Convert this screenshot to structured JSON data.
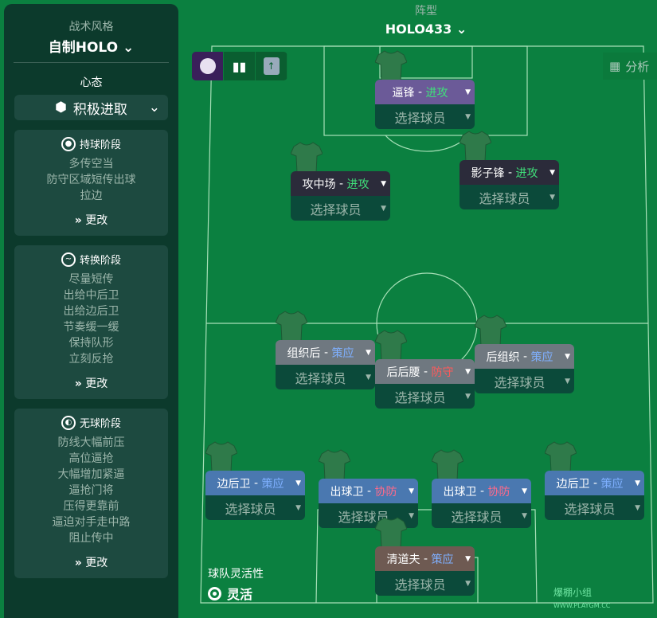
{
  "sidebar": {
    "style_label": "战术风格",
    "style_value": "自制HOLO",
    "mentality_label": "心态",
    "mentality_value": "积极进取",
    "phases": [
      {
        "title": "持球阶段",
        "icon": "ball-icon",
        "items": [
          "多传空当",
          "防守区域短传出球",
          "拉边"
        ],
        "change": "更改"
      },
      {
        "title": "转换阶段",
        "icon": "transition-icon",
        "items": [
          "尽量短传",
          "出给中后卫",
          "出给边后卫",
          "节奏缓一缓",
          "保持队形",
          "立刻反抢"
        ],
        "change": "更改"
      },
      {
        "title": "无球阶段",
        "icon": "defense-icon",
        "items": [
          "防线大幅前压",
          "高位逼抢",
          "大幅增加紧逼",
          "逼抢门将",
          "压得更靠前",
          "逼迫对手走中路",
          "阻止传中"
        ],
        "change": "更改"
      }
    ]
  },
  "formation": {
    "label": "阵型",
    "value": "HOLO433"
  },
  "analysis_label": "分析",
  "colors": {
    "attack": "#3fe07a",
    "support": "#7fb0ff",
    "defend": "#ff5a5a",
    "cover": "#ff6a8a"
  },
  "players": [
    {
      "role": "逼锋",
      "duty": "进攻",
      "duty_color": "#3fe07a",
      "bg": "#6b5a98",
      "select": "选择球员"
    },
    {
      "role": "攻中场",
      "duty": "进攻",
      "duty_color": "#3fe07a",
      "bg": "#2b2b3a",
      "select": "选择球员"
    },
    {
      "role": "影子锋",
      "duty": "进攻",
      "duty_color": "#3fe07a",
      "bg": "#2b2b3a",
      "select": "选择球员"
    },
    {
      "role": "组织后",
      "duty": "策应",
      "duty_color": "#7fb0ff",
      "bg": "#6f7880",
      "select": "选择球员"
    },
    {
      "role": "后后腰",
      "duty": "防守",
      "duty_color": "#ff5a5a",
      "bg": "#6f7880",
      "select": "选择球员"
    },
    {
      "role": "后组织",
      "duty": "策应",
      "duty_color": "#7fb0ff",
      "bg": "#6f7880",
      "select": "选择球员"
    },
    {
      "role": "边后卫",
      "duty": "策应",
      "duty_color": "#7fb0ff",
      "bg": "#4a78b0",
      "select": "选择球员"
    },
    {
      "role": "出球卫",
      "duty": "协防",
      "duty_color": "#ff6a8a",
      "bg": "#4a78b0",
      "select": "选择球员"
    },
    {
      "role": "出球卫",
      "duty": "协防",
      "duty_color": "#ff6a8a",
      "bg": "#4a78b0",
      "select": "选择球员"
    },
    {
      "role": "边后卫",
      "duty": "策应",
      "duty_color": "#7fb0ff",
      "bg": "#4a78b0",
      "select": "选择球员"
    },
    {
      "role": "清道夫",
      "duty": "策应",
      "duty_color": "#7fb0ff",
      "bg": "#6e5a52",
      "select": "选择球员"
    }
  ],
  "flexibility": {
    "label": "球队灵活性",
    "value": "灵活"
  },
  "watermark": "爆棚小组 WWW.PLAYGM.CC"
}
